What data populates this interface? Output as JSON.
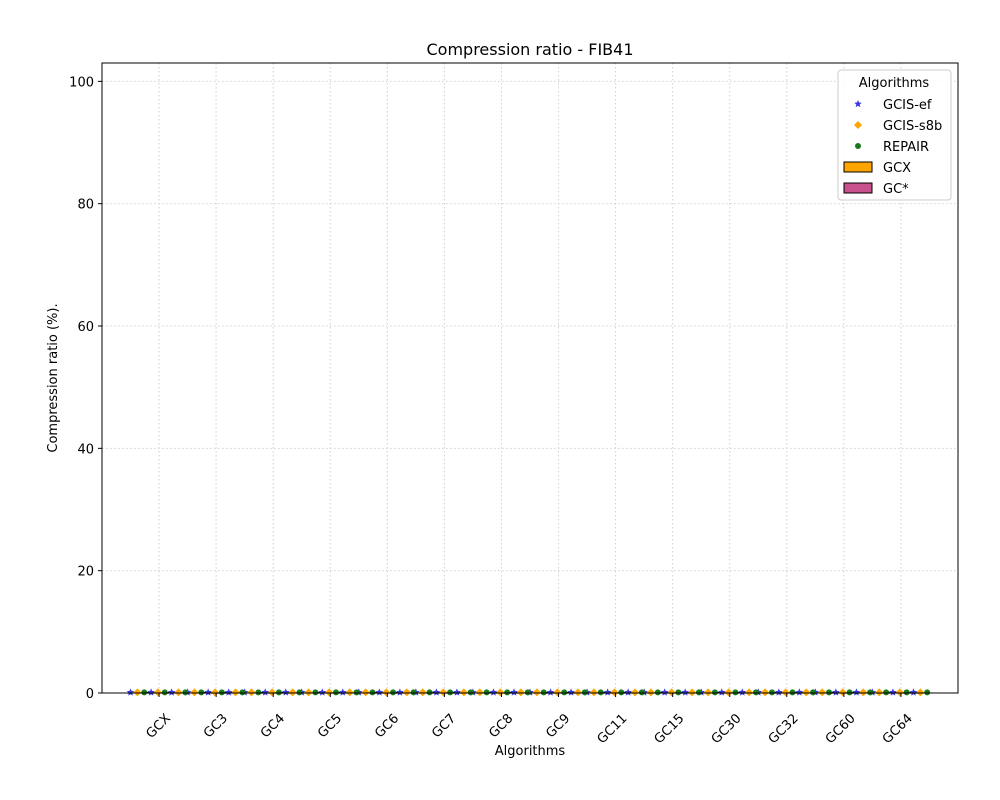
{
  "chart_data": {
    "type": "scatter",
    "title": "Compression ratio -  FIB41",
    "xlabel": "Algorithms",
    "ylabel": "Compression ratio (%).",
    "ylim": [
      0,
      103
    ],
    "yticks": [
      0,
      20,
      40,
      60,
      80,
      100
    ],
    "grid": true,
    "legend_position": "top-right",
    "legend_title": "Algorithms",
    "categories": [
      "GCX",
      "GC3",
      "GC4",
      "GC5",
      "GC6",
      "GC7",
      "GC8",
      "GC9",
      "GC11",
      "GC15",
      "GC30",
      "GC32",
      "GC60",
      "GC64"
    ],
    "series": [
      {
        "name": "GCIS-ef",
        "marker": "star",
        "color": "#3a3ae0",
        "values": [
          0.1,
          0.1,
          0.1,
          0.1,
          0.1,
          0.1,
          0.1,
          0.1,
          0.1,
          0.1,
          0.1,
          0.1,
          0.1,
          0.1
        ]
      },
      {
        "name": "GCIS-s8b",
        "marker": "diamond",
        "color": "#ffa500",
        "values": [
          0.1,
          0.1,
          0.1,
          0.1,
          0.1,
          0.1,
          0.1,
          0.1,
          0.1,
          0.1,
          0.1,
          0.1,
          0.1,
          0.1
        ]
      },
      {
        "name": "REPAIR",
        "marker": "circle",
        "color": "#1a7a1a",
        "values": [
          0.1,
          0.1,
          0.1,
          0.1,
          0.1,
          0.1,
          0.1,
          0.1,
          0.1,
          0.1,
          0.1,
          0.1,
          0.1,
          0.1
        ]
      }
    ],
    "bar_series": [
      {
        "name": "GCX",
        "color": "#ffa500",
        "values": [
          0.1,
          0.1,
          0.1,
          0.1,
          0.1,
          0.1,
          0.1,
          0.1,
          0.1,
          0.1,
          0.1,
          0.1,
          0.1,
          0.1
        ]
      },
      {
        "name": "GC*",
        "color": "#c8508c",
        "values": [
          0.1,
          0.1,
          0.1,
          0.1,
          0.1,
          0.1,
          0.1,
          0.1,
          0.1,
          0.1,
          0.1,
          0.1,
          0.1,
          0.1
        ]
      }
    ]
  }
}
